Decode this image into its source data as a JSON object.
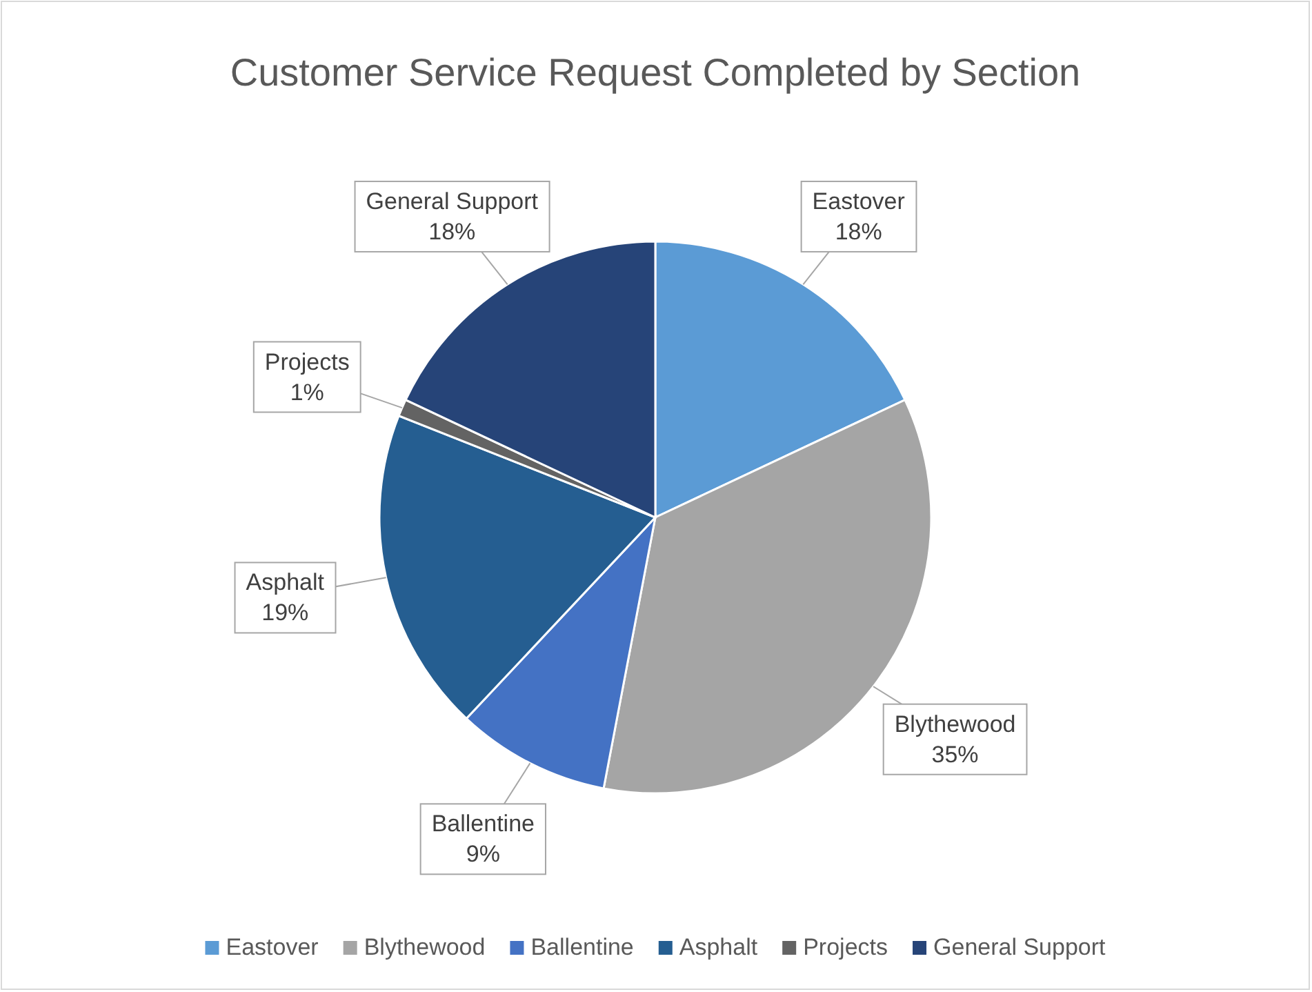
{
  "chart_data": {
    "type": "pie",
    "title": "Customer Service Request Completed by Section",
    "categories": [
      "Eastover",
      "Blythewood",
      "Ballentine",
      "Asphalt",
      "Projects",
      "General Support"
    ],
    "values": [
      18,
      35,
      9,
      19,
      1,
      18
    ],
    "colors": [
      "#5b9bd5",
      "#a5a5a5",
      "#4472c4",
      "#255e91",
      "#636363",
      "#264478"
    ],
    "value_labels": [
      "18%",
      "35%",
      "9%",
      "19%",
      "1%",
      "18%"
    ],
    "legend": "bottom"
  }
}
